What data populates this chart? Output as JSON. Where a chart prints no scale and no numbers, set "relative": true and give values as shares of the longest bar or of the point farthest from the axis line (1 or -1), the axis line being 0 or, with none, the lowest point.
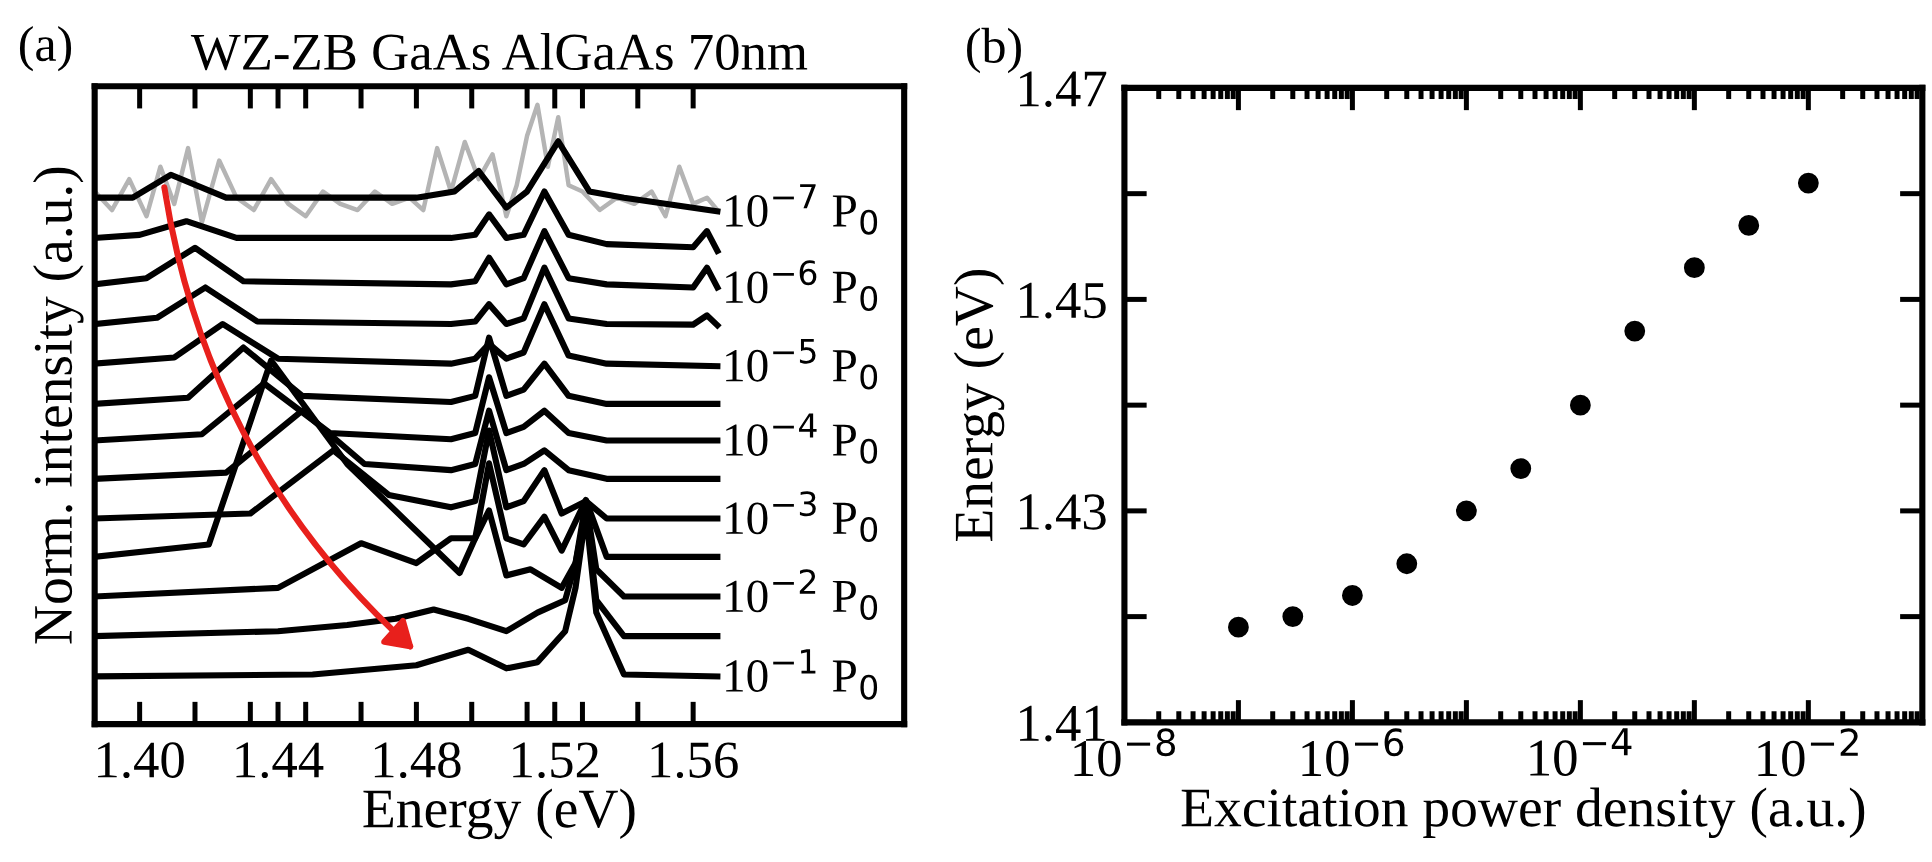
{
  "chart_data": [
    {
      "type": "line",
      "title": "WZ-ZB GaAs AlGaAs 70nm",
      "xlabel": "Energy (eV)",
      "ylabel": "Norm. intensity (a.u.)",
      "relative": true,
      "tick_labels": "x",
      "line_style": "solid",
      "marker": "none",
      "grid": false,
      "legend": false,
      "annotations": [
        "(a)"
      ],
      "xlim": [
        1.387,
        1.621
      ],
      "xticks": [
        {
          "value": 1.4,
          "label": "1.40"
        },
        {
          "value": 1.416,
          "label": null
        },
        {
          "value": 1.432,
          "label": null
        },
        {
          "value": 1.44,
          "label": "1.44"
        },
        {
          "value": 1.448,
          "label": null
        },
        {
          "value": 1.464,
          "label": null
        },
        1.48,
        {
          "value": 1.496,
          "label": null
        },
        {
          "value": 1.512,
          "label": null
        },
        {
          "value": 1.52,
          "label": "1.52"
        },
        {
          "value": 1.528,
          "label": null
        },
        {
          "value": 1.544,
          "label": null
        },
        1.56
      ],
      "series": [
        {
          "color": "#b4b4b4",
          "x": [
            1.387,
            1.392,
            1.397,
            1.402,
            1.406,
            1.41,
            1.414,
            1.418,
            1.423,
            1.428,
            1.433,
            1.438,
            1.443,
            1.448,
            1.453,
            1.458,
            1.463,
            1.468,
            1.473,
            1.478,
            1.482,
            1.486,
            1.49,
            1.494,
            1.498,
            1.502,
            1.506,
            1.509,
            1.512,
            1.515,
            1.518,
            1.521,
            1.524,
            1.528,
            1.533,
            1.538,
            1.543,
            1.548,
            1.552,
            1.556,
            1.56,
            1.564,
            1.567
          ],
          "values": [
            0.86,
            0.83,
            0.88,
            0.82,
            0.9,
            0.84,
            0.93,
            0.81,
            0.91,
            0.85,
            0.83,
            0.88,
            0.84,
            0.82,
            0.86,
            0.84,
            0.83,
            0.86,
            0.84,
            0.85,
            0.83,
            0.93,
            0.86,
            0.94,
            0.88,
            0.92,
            0.82,
            0.87,
            0.95,
            1.0,
            0.9,
            0.98,
            0.87,
            0.86,
            0.83,
            0.85,
            0.84,
            0.86,
            0.82,
            0.9,
            0.84,
            0.85,
            0.83
          ]
        },
        {
          "name": "10$^{−7}$ P$_{0}$",
          "color": "#000000",
          "x": [
            1.387,
            1.398,
            1.409,
            1.425,
            1.48,
            1.491,
            1.498,
            1.506,
            1.512,
            1.521,
            1.53,
            1.54,
            1.567
          ],
          "values": [
            0.85,
            0.85,
            0.887,
            0.85,
            0.85,
            0.86,
            0.893,
            0.834,
            0.86,
            0.941,
            0.86,
            0.85,
            0.828
          ]
        },
        {
          "color": "#000000",
          "x": [
            1.387,
            1.4,
            1.4135,
            1.428,
            1.49,
            1.497,
            1.501,
            1.506,
            1.511,
            1.517,
            1.524,
            1.535,
            1.56,
            1.564,
            1.567
          ],
          "values": [
            0.785,
            0.79,
            0.812,
            0.785,
            0.785,
            0.79,
            0.823,
            0.785,
            0.79,
            0.86,
            0.79,
            0.775,
            0.77,
            0.796,
            0.764
          ]
        },
        {
          "name": "10$^{−6}$ P$_{0}$",
          "color": "#000000",
          "x": [
            1.387,
            1.402,
            1.416,
            1.43,
            1.49,
            1.497,
            1.501,
            1.506,
            1.511,
            1.517,
            1.524,
            1.535,
            1.56,
            1.564,
            1.567
          ],
          "values": [
            0.71,
            0.72,
            0.769,
            0.715,
            0.71,
            0.715,
            0.753,
            0.71,
            0.72,
            0.796,
            0.72,
            0.71,
            0.705,
            0.737,
            0.705
          ]
        },
        {
          "color": "#000000",
          "x": [
            1.387,
            1.405,
            1.419,
            1.434,
            1.49,
            1.497,
            1.501,
            1.506,
            1.511,
            1.517,
            1.524,
            1.535,
            1.56,
            1.564,
            1.567
          ],
          "values": [
            0.646,
            0.656,
            0.705,
            0.65,
            0.646,
            0.65,
            0.678,
            0.646,
            0.655,
            0.737,
            0.655,
            0.646,
            0.645,
            0.66,
            0.644
          ]
        },
        {
          "name": "10$^{−5}$ P$_{0}$",
          "color": "#000000",
          "x": [
            1.387,
            1.41,
            1.424,
            1.44,
            1.49,
            1.497,
            1.501,
            1.506,
            1.511,
            1.517,
            1.524,
            1.535,
            1.567
          ],
          "values": [
            0.582,
            0.592,
            0.646,
            0.59,
            0.582,
            0.59,
            0.614,
            0.59,
            0.6,
            0.678,
            0.595,
            0.582,
            0.578
          ]
        },
        {
          "color": "#000000",
          "x": [
            1.387,
            1.414,
            1.43,
            1.447,
            1.49,
            1.497,
            1.501,
            1.506,
            1.511,
            1.517,
            1.524,
            1.535,
            1.567
          ],
          "values": [
            0.517,
            0.527,
            0.608,
            0.53,
            0.52,
            0.53,
            0.624,
            0.53,
            0.54,
            0.582,
            0.53,
            0.517,
            0.517
          ]
        },
        {
          "name": "10$^{−4}$ P$_{0}$",
          "color": "#000000",
          "x": [
            1.387,
            1.418,
            1.436,
            1.455,
            1.49,
            1.497,
            1.501,
            1.506,
            1.511,
            1.517,
            1.524,
            1.535,
            1.567
          ],
          "values": [
            0.458,
            0.468,
            0.55,
            0.47,
            0.46,
            0.47,
            0.56,
            0.47,
            0.48,
            0.506,
            0.47,
            0.458,
            0.458
          ]
        },
        {
          "color": "#000000",
          "x": [
            1.387,
            1.425,
            1.447,
            1.465,
            1.49,
            1.497,
            1.501,
            1.506,
            1.511,
            1.517,
            1.524,
            1.535,
            1.567
          ],
          "values": [
            0.396,
            0.406,
            0.506,
            0.42,
            0.41,
            0.42,
            0.506,
            0.41,
            0.42,
            0.442,
            0.41,
            0.396,
            0.396
          ]
        },
        {
          "name": "10$^{−3}$ P$_{0}$",
          "color": "#000000",
          "x": [
            1.387,
            1.432,
            1.456,
            1.472,
            1.49,
            1.497,
            1.501,
            1.506,
            1.511,
            1.517,
            1.522,
            1.529,
            1.535,
            1.567
          ],
          "values": [
            0.332,
            0.34,
            0.442,
            0.37,
            0.35,
            0.36,
            0.474,
            0.35,
            0.36,
            0.41,
            0.34,
            0.36,
            0.332,
            0.332
          ]
        },
        {
          "color": "#000000",
          "x": [
            1.387,
            1.42,
            1.438,
            1.46,
            1.4925,
            1.497,
            1.501,
            1.506,
            1.511,
            1.517,
            1.522,
            1.529,
            1.535,
            1.567
          ],
          "values": [
            0.27,
            0.29,
            0.587,
            0.42,
            0.244,
            0.3,
            0.421,
            0.3,
            0.29,
            0.335,
            0.28,
            0.362,
            0.27,
            0.27
          ]
        },
        {
          "name": "10$^{−2}$ P$_{0}$",
          "color": "#000000",
          "x": [
            1.387,
            1.44,
            1.464,
            1.48,
            1.49,
            1.497,
            1.501,
            1.506,
            1.513,
            1.522,
            1.526,
            1.529,
            1.532,
            1.54,
            1.567
          ],
          "values": [
            0.206,
            0.22,
            0.292,
            0.26,
            0.3,
            0.3,
            0.345,
            0.24,
            0.25,
            0.22,
            0.26,
            0.36,
            0.25,
            0.206,
            0.206
          ]
        },
        {
          "color": "#000000",
          "x": [
            1.387,
            1.44,
            1.46,
            1.474,
            1.485,
            1.495,
            1.506,
            1.515,
            1.523,
            1.526,
            1.529,
            1.532,
            1.54,
            1.567
          ],
          "values": [
            0.142,
            0.15,
            0.16,
            0.17,
            0.185,
            0.17,
            0.15,
            0.18,
            0.2,
            0.26,
            0.345,
            0.2,
            0.142,
            0.142
          ]
        },
        {
          "name": "10$^{−1}$ P$_{0}$",
          "color": "#000000",
          "x": [
            1.387,
            1.45,
            1.48,
            1.495,
            1.506,
            1.515,
            1.523,
            1.526,
            1.529,
            1.532,
            1.54,
            1.567
          ],
          "values": [
            0.077,
            0.08,
            0.095,
            0.12,
            0.09,
            0.1,
            0.15,
            0.22,
            0.34,
            0.18,
            0.08,
            0.077
          ]
        }
      ]
    },
    {
      "type": "scatter",
      "xlabel": "Excitation power density (a.u.)",
      "ylabel": "Energy (eV)",
      "log": "x",
      "marker": "circle",
      "grid": false,
      "legend": false,
      "annotations": [
        "(b)"
      ],
      "xlim": [
        1e-08,
        0.1
      ],
      "ylim": [
        1.41,
        1.47
      ],
      "xticks": [
        {
          "value": 1e-08,
          "label": "10$^{−8}$"
        },
        {
          "value": 1e-07,
          "label": null
        },
        {
          "value": 1e-06,
          "label": "10$^{−6}$"
        },
        {
          "value": 1e-05,
          "label": null
        },
        {
          "value": 0.0001,
          "label": "10$^{−4}$"
        },
        {
          "value": 0.001,
          "label": null
        },
        {
          "value": 0.01,
          "label": "10$^{−2}$"
        }
      ],
      "yticks": [
        1.41,
        {
          "value": 1.42,
          "label": null
        },
        1.43,
        {
          "value": 1.44,
          "label": null
        },
        1.45,
        {
          "value": 1.46,
          "label": null
        },
        1.47
      ],
      "x": [
        1e-07,
        3e-07,
        1e-06,
        3e-06,
        1e-05,
        3e-05,
        0.0001,
        0.0003,
        0.001,
        0.003,
        0.01
      ],
      "series": [
        {
          "color": "#000000",
          "values": [
            1.419,
            1.42,
            1.422,
            1.425,
            1.43,
            1.434,
            1.44,
            1.447,
            1.453,
            1.457,
            1.461
          ]
        }
      ]
    }
  ]
}
